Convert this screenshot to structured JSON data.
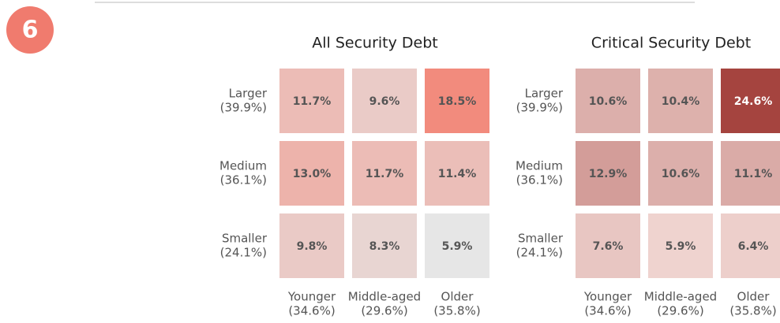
{
  "badge": "6",
  "chart_data": [
    {
      "type": "heatmap",
      "title": "All Security Debt",
      "rows": [
        {
          "label": "Larger",
          "share": "(39.9%)"
        },
        {
          "label": "Medium",
          "share": "(36.1%)"
        },
        {
          "label": "Smaller",
          "share": "(24.1%)"
        }
      ],
      "columns": [
        {
          "label": "Younger",
          "share": "(34.6%)"
        },
        {
          "label": "Middle-aged",
          "share": "(29.6%)"
        },
        {
          "label": "Older",
          "share": "(35.8%)"
        }
      ],
      "values": [
        [
          11.7,
          9.6,
          18.5
        ],
        [
          13.0,
          11.7,
          11.4
        ],
        [
          9.8,
          8.3,
          5.9
        ]
      ],
      "value_labels": [
        [
          "11.7%",
          "9.6%",
          "18.5%"
        ],
        [
          "13.0%",
          "11.7%",
          "11.4%"
        ],
        [
          "9.8%",
          "8.3%",
          "5.9%"
        ]
      ],
      "colorscale": [
        "#e6e6e6",
        "#f28b7d"
      ]
    },
    {
      "type": "heatmap",
      "title": "Critical Security Debt",
      "rows": [
        {
          "label": "Larger",
          "share": "(39.9%)"
        },
        {
          "label": "Medium",
          "share": "(36.1%)"
        },
        {
          "label": "Smaller",
          "share": "(24.1%)"
        }
      ],
      "columns": [
        {
          "label": "Younger",
          "share": "(34.6%)"
        },
        {
          "label": "Middle-aged",
          "share": "(29.6%)"
        },
        {
          "label": "Older",
          "share": "(35.8%)"
        }
      ],
      "values": [
        [
          10.6,
          10.4,
          24.6
        ],
        [
          12.9,
          10.6,
          11.1
        ],
        [
          7.6,
          5.9,
          6.4
        ]
      ],
      "value_labels": [
        [
          "10.6%",
          "10.4%",
          "24.6%"
        ],
        [
          "12.9%",
          "10.6%",
          "11.1%"
        ],
        [
          "7.6%",
          "5.9%",
          "6.4%"
        ]
      ],
      "colorscale": [
        "#efd3cf",
        "#a5443f"
      ]
    }
  ]
}
